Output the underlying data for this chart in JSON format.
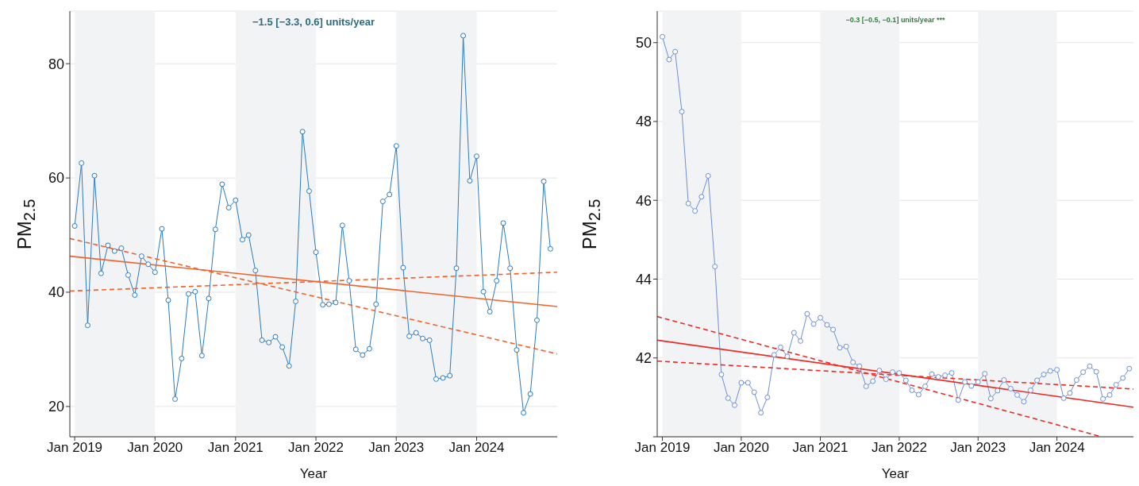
{
  "chart_data": [
    {
      "type": "line",
      "xlabel": "Year",
      "ylabel": "PM$_{2.5}$",
      "annotations": [
        "−1.5 [−3.3, 0.6] units/year"
      ],
      "x": [
        "2019-01",
        "2019-02",
        "2019-03",
        "2019-04",
        "2019-05",
        "2019-06",
        "2019-07",
        "2019-08",
        "2019-09",
        "2019-10",
        "2019-11",
        "2019-12",
        "2020-01",
        "2020-02",
        "2020-03",
        "2020-04",
        "2020-05",
        "2020-06",
        "2020-07",
        "2020-08",
        "2020-09",
        "2020-10",
        "2020-11",
        "2020-12",
        "2021-01",
        "2021-02",
        "2021-03",
        "2021-04",
        "2021-05",
        "2021-06",
        "2021-07",
        "2021-08",
        "2021-09",
        "2021-10",
        "2021-11",
        "2021-12",
        "2022-01",
        "2022-02",
        "2022-03",
        "2022-04",
        "2022-05",
        "2022-06",
        "2022-07",
        "2022-08",
        "2022-09",
        "2022-10",
        "2022-11",
        "2022-12",
        "2023-01",
        "2023-02",
        "2023-03",
        "2023-04",
        "2023-05",
        "2023-06",
        "2023-07",
        "2023-08",
        "2023-09",
        "2023-10",
        "2023-11",
        "2023-12",
        "2024-01",
        "2024-02",
        "2024-03",
        "2024-04",
        "2024-05",
        "2024-06",
        "2024-07",
        "2024-08",
        "2024-09",
        "2024-10",
        "2024-11",
        "2024-12"
      ],
      "series": [
        {
          "color": "#2a7bc0",
          "marker": "circle",
          "line_style": "solid",
          "values": [
            51.6,
            62.6,
            34.2,
            60.4,
            43.3,
            48.2,
            47.2,
            47.7,
            43.0,
            39.5,
            46.3,
            44.9,
            43.5,
            51.1,
            38.6,
            21.3,
            28.4,
            39.7,
            40.1,
            28.9,
            38.9,
            51.0,
            58.9,
            54.8,
            56.1,
            49.2,
            50.0,
            43.8,
            31.6,
            31.2,
            32.2,
            30.4,
            27.1,
            38.4,
            68.1,
            57.7,
            47.0,
            37.8,
            37.9,
            38.2,
            51.7,
            42.0,
            30.0,
            29.0,
            30.1,
            37.9,
            55.9,
            57.1,
            65.6,
            44.3,
            32.3,
            32.9,
            31.9,
            31.6,
            24.8,
            25.0,
            25.4,
            44.2,
            84.9,
            59.5,
            63.8,
            40.1,
            36.6,
            42.0,
            52.1,
            44.2,
            29.9,
            18.9,
            22.2,
            35.1,
            59.4,
            47.6
          ]
        },
        {
          "type": "line",
          "color": "#f4622a",
          "marker": "none",
          "line_style": "solid",
          "x": [
            "2018-12-10",
            "2025-01-01"
          ],
          "values": [
            46.3,
            37.5
          ]
        },
        {
          "type": "line",
          "color": "#f4622a",
          "marker": "none",
          "line_style": "dashed",
          "x": [
            "2018-12-10",
            "2025-01-01"
          ],
          "values": [
            49.4,
            29.2
          ]
        },
        {
          "type": "line",
          "color": "#f4622a",
          "marker": "none",
          "line_style": "dashed",
          "x": [
            "2018-12-10",
            "2025-01-01"
          ],
          "values": [
            40.2,
            43.5
          ]
        }
      ],
      "xlim": [
        "2018-12-10",
        "2025-01-01"
      ],
      "xticks": [
        {
          "value": "2019-01-01",
          "label": "Jan 2019"
        },
        {
          "value": "2020-01-01",
          "label": "Jan 2020"
        },
        {
          "value": "2021-01-01",
          "label": "Jan 2021"
        },
        {
          "value": "2022-01-01",
          "label": "Jan 2022"
        },
        {
          "value": "2023-01-01",
          "label": "Jan 2023"
        },
        {
          "value": "2024-01-01",
          "label": "Jan 2024"
        }
      ],
      "ylim": [
        14.7,
        89.2
      ],
      "yticks": [
        20,
        40,
        60,
        80
      ],
      "bands": [
        {
          "axis": "x",
          "from": "2019-01-01",
          "to": "2020-01-01",
          "color": "#f2f3f5"
        },
        {
          "axis": "x",
          "from": "2021-01-01",
          "to": "2022-01-01",
          "color": "#f2f3f5"
        },
        {
          "axis": "x",
          "from": "2023-01-01",
          "to": "2024-01-01",
          "color": "#f2f3f5"
        }
      ],
      "grid": "y"
    },
    {
      "type": "line",
      "xlabel": "Year",
      "ylabel": "PM$_{2.5}$",
      "annotations": [
        "−0.3 [−0.5, −0.1] units/year ***"
      ],
      "x": [
        "2019-01",
        "2019-02",
        "2019-03",
        "2019-04",
        "2019-05",
        "2019-06",
        "2019-07",
        "2019-08",
        "2019-09",
        "2019-10",
        "2019-11",
        "2019-12",
        "2020-01",
        "2020-02",
        "2020-03",
        "2020-04",
        "2020-05",
        "2020-06",
        "2020-07",
        "2020-08",
        "2020-09",
        "2020-10",
        "2020-11",
        "2020-12",
        "2021-01",
        "2021-02",
        "2021-03",
        "2021-04",
        "2021-05",
        "2021-06",
        "2021-07",
        "2021-08",
        "2021-09",
        "2021-10",
        "2021-11",
        "2021-12",
        "2022-01",
        "2022-02",
        "2022-03",
        "2022-04",
        "2022-05",
        "2022-06",
        "2022-07",
        "2022-08",
        "2022-09",
        "2022-10",
        "2022-11",
        "2022-12",
        "2023-01",
        "2023-02",
        "2023-03",
        "2023-04",
        "2023-05",
        "2023-06",
        "2023-07",
        "2023-08",
        "2023-09",
        "2023-10",
        "2023-11",
        "2023-12",
        "2024-01",
        "2024-02",
        "2024-03",
        "2024-04",
        "2024-05",
        "2024-06",
        "2024-07",
        "2024-08",
        "2024-09",
        "2024-10",
        "2024-11",
        "2024-12"
      ],
      "series": [
        {
          "color": "#6b8fd6",
          "marker": "circle",
          "line_style": "solid",
          "values": [
            50.15,
            49.57,
            49.77,
            48.25,
            45.92,
            45.73,
            46.09,
            46.62,
            44.32,
            41.58,
            40.98,
            40.8,
            41.37,
            41.37,
            41.13,
            40.61,
            41.0,
            42.08,
            42.27,
            42.04,
            42.64,
            42.43,
            43.12,
            42.86,
            43.02,
            42.84,
            42.72,
            42.26,
            42.29,
            41.89,
            41.79,
            41.28,
            41.41,
            41.68,
            41.46,
            41.64,
            41.62,
            41.43,
            41.18,
            41.07,
            41.28,
            41.59,
            41.52,
            41.56,
            41.62,
            40.93,
            41.39,
            41.29,
            41.39,
            41.6,
            40.97,
            41.17,
            41.44,
            41.22,
            41.06,
            40.89,
            41.18,
            41.43,
            41.58,
            41.67,
            41.7,
            40.98,
            41.11,
            41.44,
            41.64,
            41.79,
            41.65,
            40.96,
            41.06,
            41.32,
            41.49,
            41.73
          ]
        },
        {
          "type": "line",
          "color": "#ee2a24",
          "marker": "none",
          "line_style": "solid",
          "x": [
            "2018-12-08",
            "2024-12-20"
          ],
          "values": [
            42.45,
            40.75
          ]
        },
        {
          "type": "line",
          "color": "#ee2a24",
          "marker": "none",
          "line_style": "dashed",
          "x": [
            "2018-12-08",
            "2024-07-25"
          ],
          "values": [
            43.05,
            40.0
          ]
        },
        {
          "type": "line",
          "color": "#ee2a24",
          "marker": "none",
          "line_style": "dashed",
          "x": [
            "2018-12-08",
            "2024-12-20"
          ],
          "values": [
            41.92,
            41.21
          ]
        }
      ],
      "xlim": [
        "2018-12-08",
        "2024-12-20"
      ],
      "xticks": [
        {
          "value": "2019-01-01",
          "label": "Jan 2019"
        },
        {
          "value": "2020-01-01",
          "label": "Jan 2020"
        },
        {
          "value": "2021-01-01",
          "label": "Jan 2021"
        },
        {
          "value": "2022-01-01",
          "label": "Jan 2022"
        },
        {
          "value": "2023-01-01",
          "label": "Jan 2023"
        },
        {
          "value": "2024-01-01",
          "label": "Jan 2024"
        }
      ],
      "ylim": [
        40.0,
        50.8
      ],
      "yticks": [
        {
          "value": 40,
          "label": null
        },
        42,
        44,
        46,
        48,
        50
      ],
      "bands": [
        {
          "axis": "x",
          "from": "2019-01-01",
          "to": "2020-01-01",
          "color": "#f2f3f5"
        },
        {
          "axis": "x",
          "from": "2021-01-01",
          "to": "2022-01-01",
          "color": "#f2f3f5"
        },
        {
          "axis": "x",
          "from": "2023-01-01",
          "to": "2024-01-01",
          "color": "#f2f3f5"
        }
      ],
      "grid": "y"
    }
  ]
}
